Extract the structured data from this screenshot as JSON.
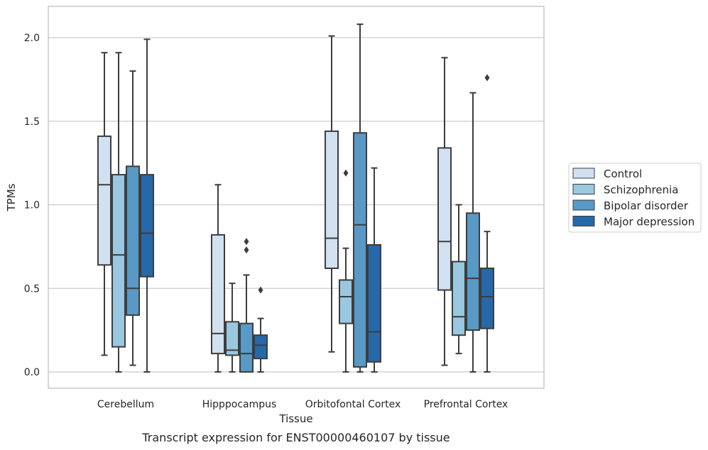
{
  "chart_data": {
    "type": "box",
    "caption": "Transcript expression for ENST00000460107 by tissue",
    "xlabel": "Tissue",
    "ylabel": "TPMs",
    "ylim": [
      -0.1,
      2.19
    ],
    "yticks": [
      0.0,
      0.5,
      1.0,
      1.5,
      2.0
    ],
    "ytick_labels": [
      "0.0",
      "0.5",
      "1.0",
      "1.5",
      "2.0"
    ],
    "grid": "horizontal",
    "legend_position": "outside-right",
    "categories": [
      "Cerebellum",
      "Hipppocampus",
      "Orbitofontal Cortex",
      "Prefrontal Cortex"
    ],
    "series": [
      {
        "name": "Control",
        "color": "#d1e1f1",
        "boxes": [
          {
            "whislo": 0.1,
            "q1": 0.64,
            "med": 1.12,
            "q3": 1.41,
            "whishi": 1.91,
            "fliers": []
          },
          {
            "whislo": 0.0,
            "q1": 0.11,
            "med": 0.23,
            "q3": 0.82,
            "whishi": 1.12,
            "fliers": []
          },
          {
            "whislo": 0.12,
            "q1": 0.62,
            "med": 0.8,
            "q3": 1.44,
            "whishi": 2.01,
            "fliers": []
          },
          {
            "whislo": 0.04,
            "q1": 0.49,
            "med": 0.78,
            "q3": 1.34,
            "whishi": 1.88,
            "fliers": []
          }
        ]
      },
      {
        "name": "Schizophrenia",
        "color": "#9ac8e0",
        "boxes": [
          {
            "whislo": 0.0,
            "q1": 0.15,
            "med": 0.7,
            "q3": 1.18,
            "whishi": 1.91,
            "fliers": []
          },
          {
            "whislo": 0.0,
            "q1": 0.1,
            "med": 0.13,
            "q3": 0.3,
            "whishi": 0.53,
            "fliers": []
          },
          {
            "whislo": 0.0,
            "q1": 0.29,
            "med": 0.45,
            "q3": 0.55,
            "whishi": 0.74,
            "fliers": [
              1.19
            ]
          },
          {
            "whislo": 0.11,
            "q1": 0.22,
            "med": 0.33,
            "q3": 0.66,
            "whishi": 1.0,
            "fliers": []
          }
        ]
      },
      {
        "name": "Bipolar disorder",
        "color": "#5899c6",
        "boxes": [
          {
            "whislo": 0.04,
            "q1": 0.34,
            "med": 0.5,
            "q3": 1.23,
            "whishi": 1.8,
            "fliers": []
          },
          {
            "whislo": 0.0,
            "q1": 0.0,
            "med": 0.11,
            "q3": 0.29,
            "whishi": 0.58,
            "fliers": [
              0.73,
              0.78
            ]
          },
          {
            "whislo": 0.0,
            "q1": 0.03,
            "med": 0.88,
            "q3": 1.43,
            "whishi": 2.08,
            "fliers": []
          },
          {
            "whislo": 0.0,
            "q1": 0.25,
            "med": 0.56,
            "q3": 0.95,
            "whishi": 1.67,
            "fliers": []
          }
        ]
      },
      {
        "name": "Major depression",
        "color": "#2668a9",
        "boxes": [
          {
            "whislo": 0.0,
            "q1": 0.57,
            "med": 0.83,
            "q3": 1.18,
            "whishi": 1.99,
            "fliers": []
          },
          {
            "whislo": 0.0,
            "q1": 0.08,
            "med": 0.16,
            "q3": 0.22,
            "whishi": 0.32,
            "fliers": [
              0.49
            ]
          },
          {
            "whislo": 0.0,
            "q1": 0.06,
            "med": 0.24,
            "q3": 0.76,
            "whishi": 1.22,
            "fliers": []
          },
          {
            "whislo": 0.0,
            "q1": 0.26,
            "med": 0.45,
            "q3": 0.62,
            "whishi": 0.84,
            "fliers": [
              1.76
            ]
          }
        ]
      }
    ]
  }
}
